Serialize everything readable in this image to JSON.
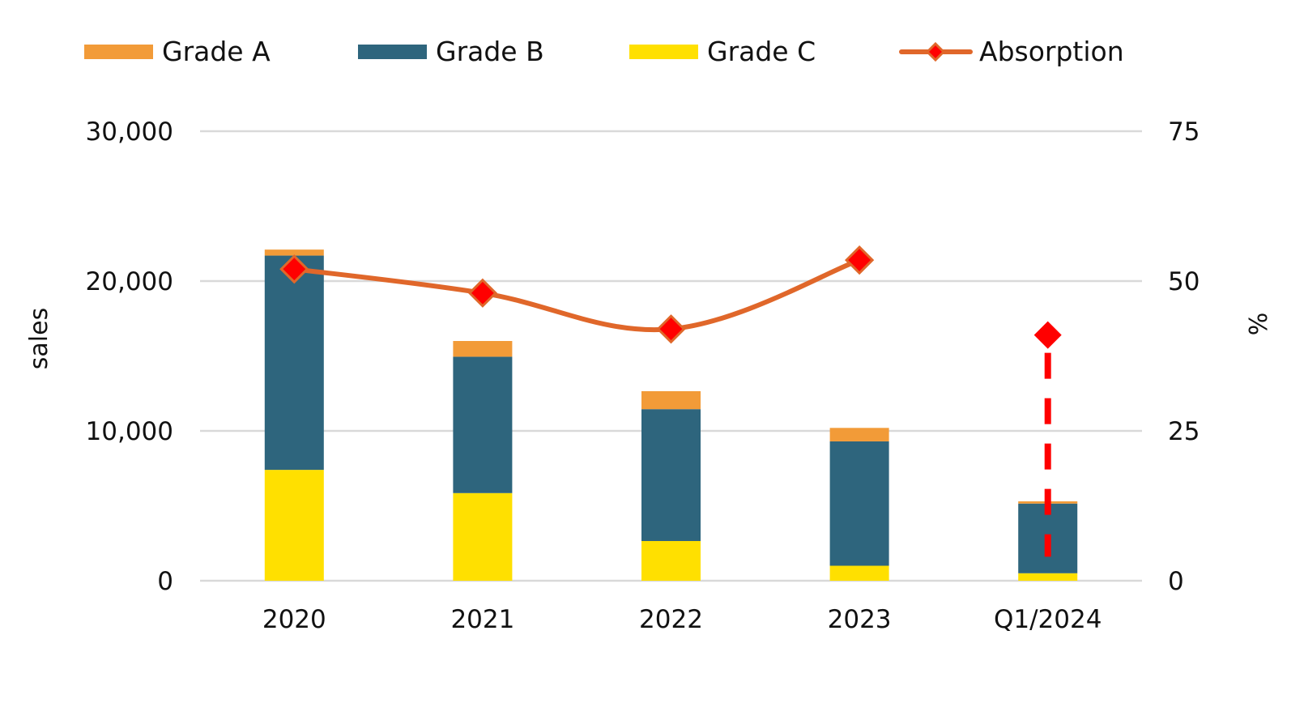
{
  "chart_data": {
    "type": "bar",
    "stacked": true,
    "title": "",
    "categories": [
      "2020",
      "2021",
      "2022",
      "2023",
      "Q1/2024"
    ],
    "series": [
      {
        "name": "Grade C",
        "type": "bar",
        "axis": "left",
        "color": "#FFE000",
        "values": [
          7400,
          5850,
          2650,
          1000,
          500
        ]
      },
      {
        "name": "Grade B",
        "type": "bar",
        "axis": "left",
        "color": "#2E657D",
        "values": [
          14300,
          9100,
          8800,
          8300,
          4650
        ]
      },
      {
        "name": "Grade A",
        "type": "bar",
        "axis": "left",
        "color": "#F29B38",
        "values": [
          400,
          1050,
          1200,
          900,
          150
        ]
      },
      {
        "name": "Absorption",
        "type": "line",
        "axis": "right",
        "color": "#E0672A",
        "marker": "diamond",
        "marker_color": "#FF0000",
        "smooth": true,
        "values": [
          52,
          48,
          42,
          53.5,
          41
        ]
      }
    ],
    "projection": {
      "category": "Q1/2024",
      "style": "dashed",
      "color": "#FF0000",
      "from": 41,
      "to": 4
    },
    "legend": {
      "placement": "top",
      "order": [
        "Grade A",
        "Grade B",
        "Grade C",
        "Absorption"
      ]
    },
    "y_left": {
      "label": "sales",
      "ylim": [
        0,
        30000
      ],
      "ticks": [
        0,
        10000,
        20000,
        30000
      ],
      "tick_labels": [
        "0",
        "10,000",
        "20,000",
        "30,000"
      ]
    },
    "y_right": {
      "label": "%",
      "ylim": [
        0,
        75
      ],
      "ticks": [
        0,
        25,
        50,
        75
      ],
      "tick_labels": [
        "0",
        "25",
        "50",
        "75"
      ]
    },
    "xlabel": "",
    "grid": true,
    "gridline_color": "#D9D9D9"
  }
}
